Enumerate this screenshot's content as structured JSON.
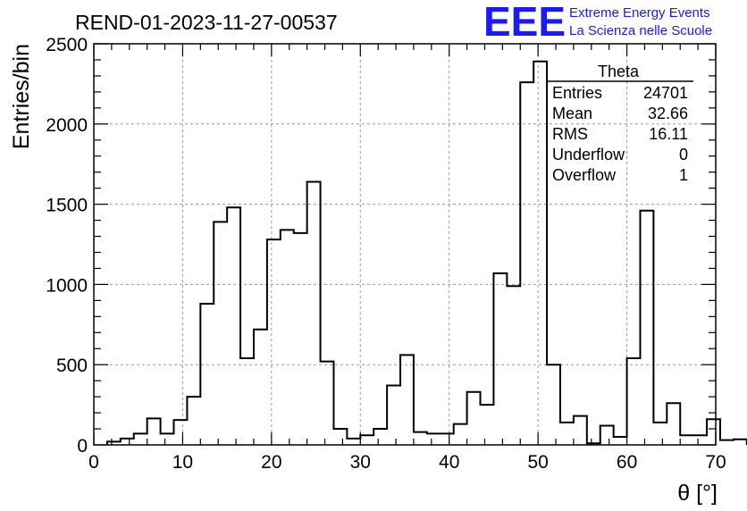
{
  "chart_data": {
    "type": "bar",
    "title": "REND-01-2023-11-27-00537",
    "xlabel": "θ [°]",
    "ylabel": "Entries/bin",
    "xlim": [
      0,
      70
    ],
    "ylim": [
      0,
      2500
    ],
    "xticks": [
      0,
      10,
      20,
      30,
      40,
      50,
      60,
      70
    ],
    "yticks": [
      0,
      500,
      1000,
      1500,
      2000,
      2500
    ],
    "grid": true,
    "bin_width": 1.5,
    "bin_edges_start": 1.5,
    "values": [
      20,
      40,
      70,
      165,
      70,
      155,
      300,
      880,
      1390,
      1480,
      540,
      720,
      1280,
      1340,
      1320,
      1640,
      520,
      100,
      40,
      60,
      100,
      370,
      560,
      80,
      70,
      70,
      130,
      330,
      250,
      1070,
      990,
      2260,
      2390,
      500,
      140,
      180,
      10,
      120,
      50,
      540,
      1460,
      140,
      260,
      60,
      60,
      160,
      30,
      35
    ]
  },
  "stats": {
    "name": "Theta",
    "rows": [
      {
        "label": "Entries",
        "value": "24701"
      },
      {
        "label": "Mean",
        "value": "32.66"
      },
      {
        "label": "RMS",
        "value": "16.11"
      },
      {
        "label": "Underflow",
        "value": "0"
      },
      {
        "label": "Overflow",
        "value": "1"
      }
    ]
  },
  "logo": {
    "mark": "EEE",
    "line1": "Extreme Energy Events",
    "line2": "La Scienza nelle Scuole",
    "color": "#1a1aff"
  }
}
